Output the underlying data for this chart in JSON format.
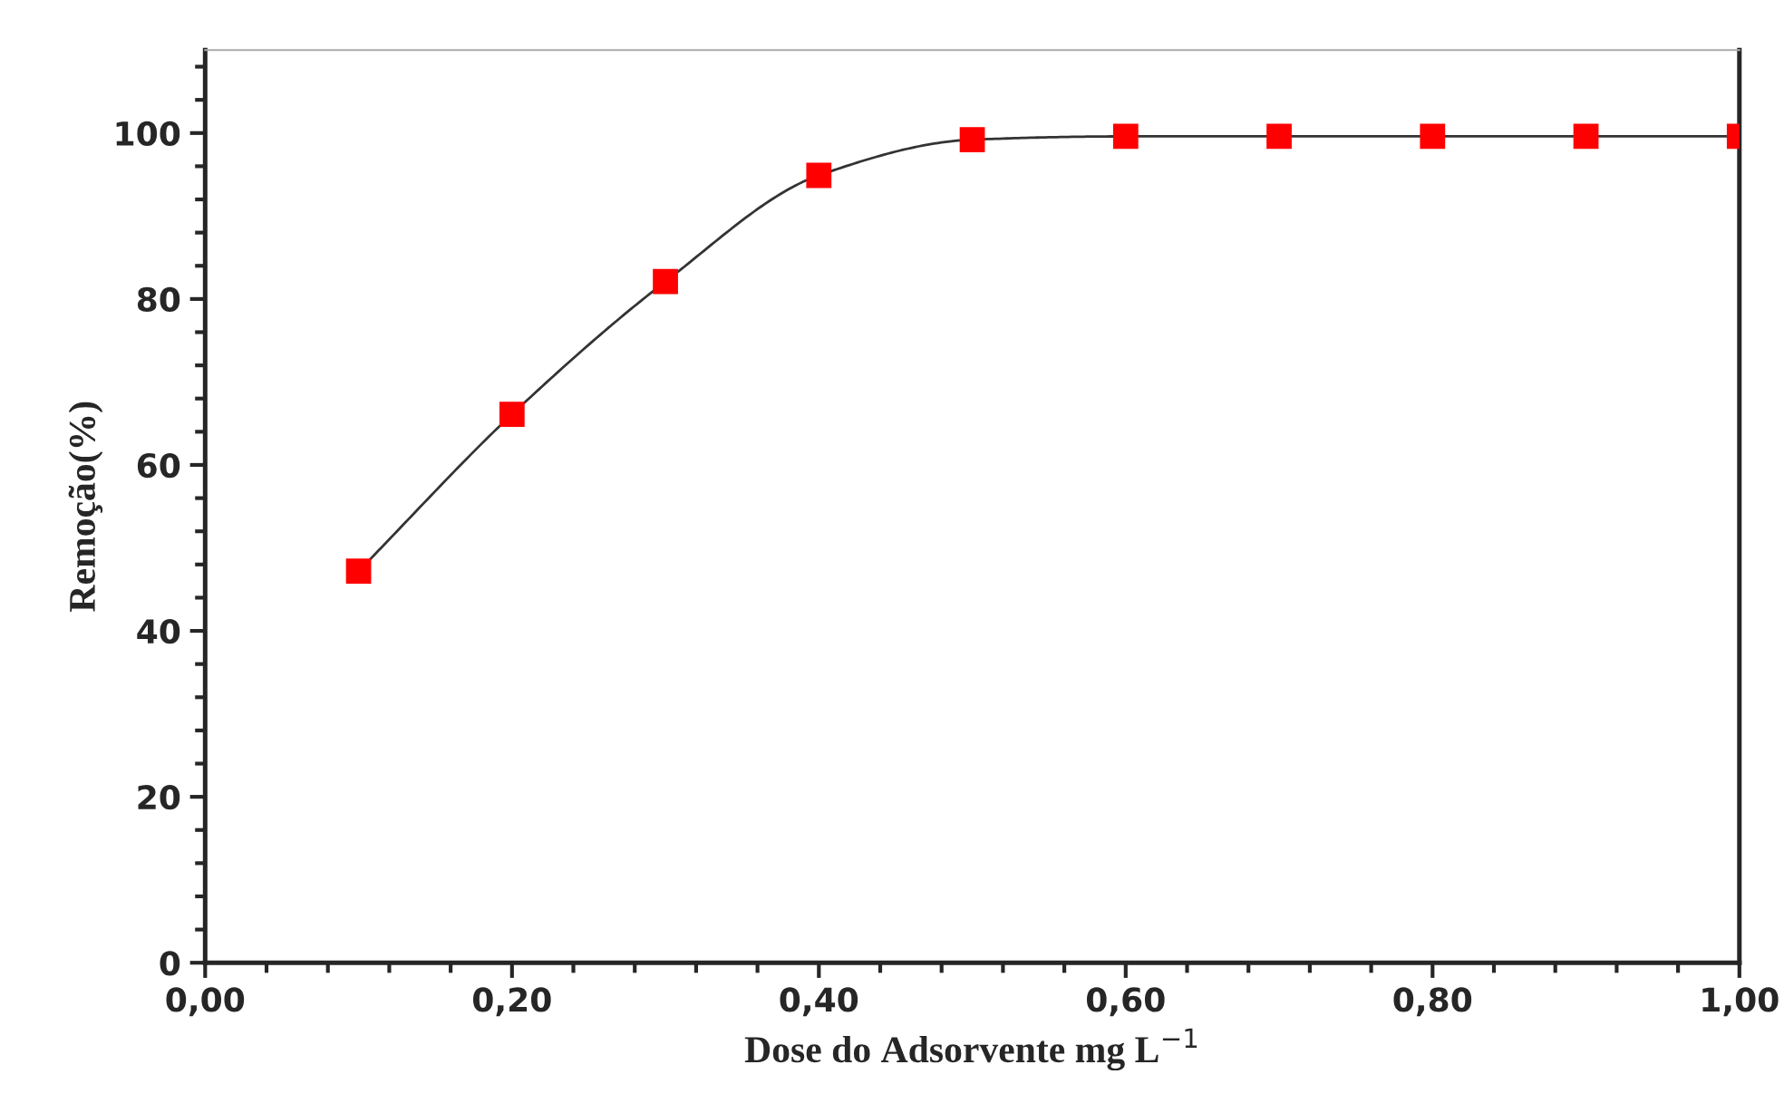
{
  "chart_data": {
    "type": "line",
    "xlabel": "Dose do Adsorvente mg L$^{−1}$",
    "ylabel": "Remoção(%)",
    "x": [
      0.1,
      0.2,
      0.3,
      0.4,
      0.5,
      0.6,
      0.7,
      0.8,
      0.9,
      1.0
    ],
    "series": [
      {
        "color": "#ff0000",
        "values": [
          47.2,
          66.1,
          82.1,
          94.9,
          99.2,
          99.6,
          99.6,
          99.6,
          99.6,
          99.6
        ]
      }
    ],
    "marker": "square",
    "xlim": [
      0,
      1
    ],
    "xticks": [
      {
        "value": 0,
        "label": "0,00"
      },
      {
        "value": 0.2,
        "label": "0,20"
      },
      {
        "value": 0.4,
        "label": "0,40"
      },
      {
        "value": 0.6,
        "label": "0,60"
      },
      {
        "value": 0.8,
        "label": "0,80"
      },
      {
        "value": 1.0,
        "label": "1,00"
      }
    ],
    "ylim": [
      0,
      110
    ],
    "yticks": [
      0,
      20,
      40,
      60,
      80,
      100
    ],
    "grid": false,
    "legend": false
  }
}
